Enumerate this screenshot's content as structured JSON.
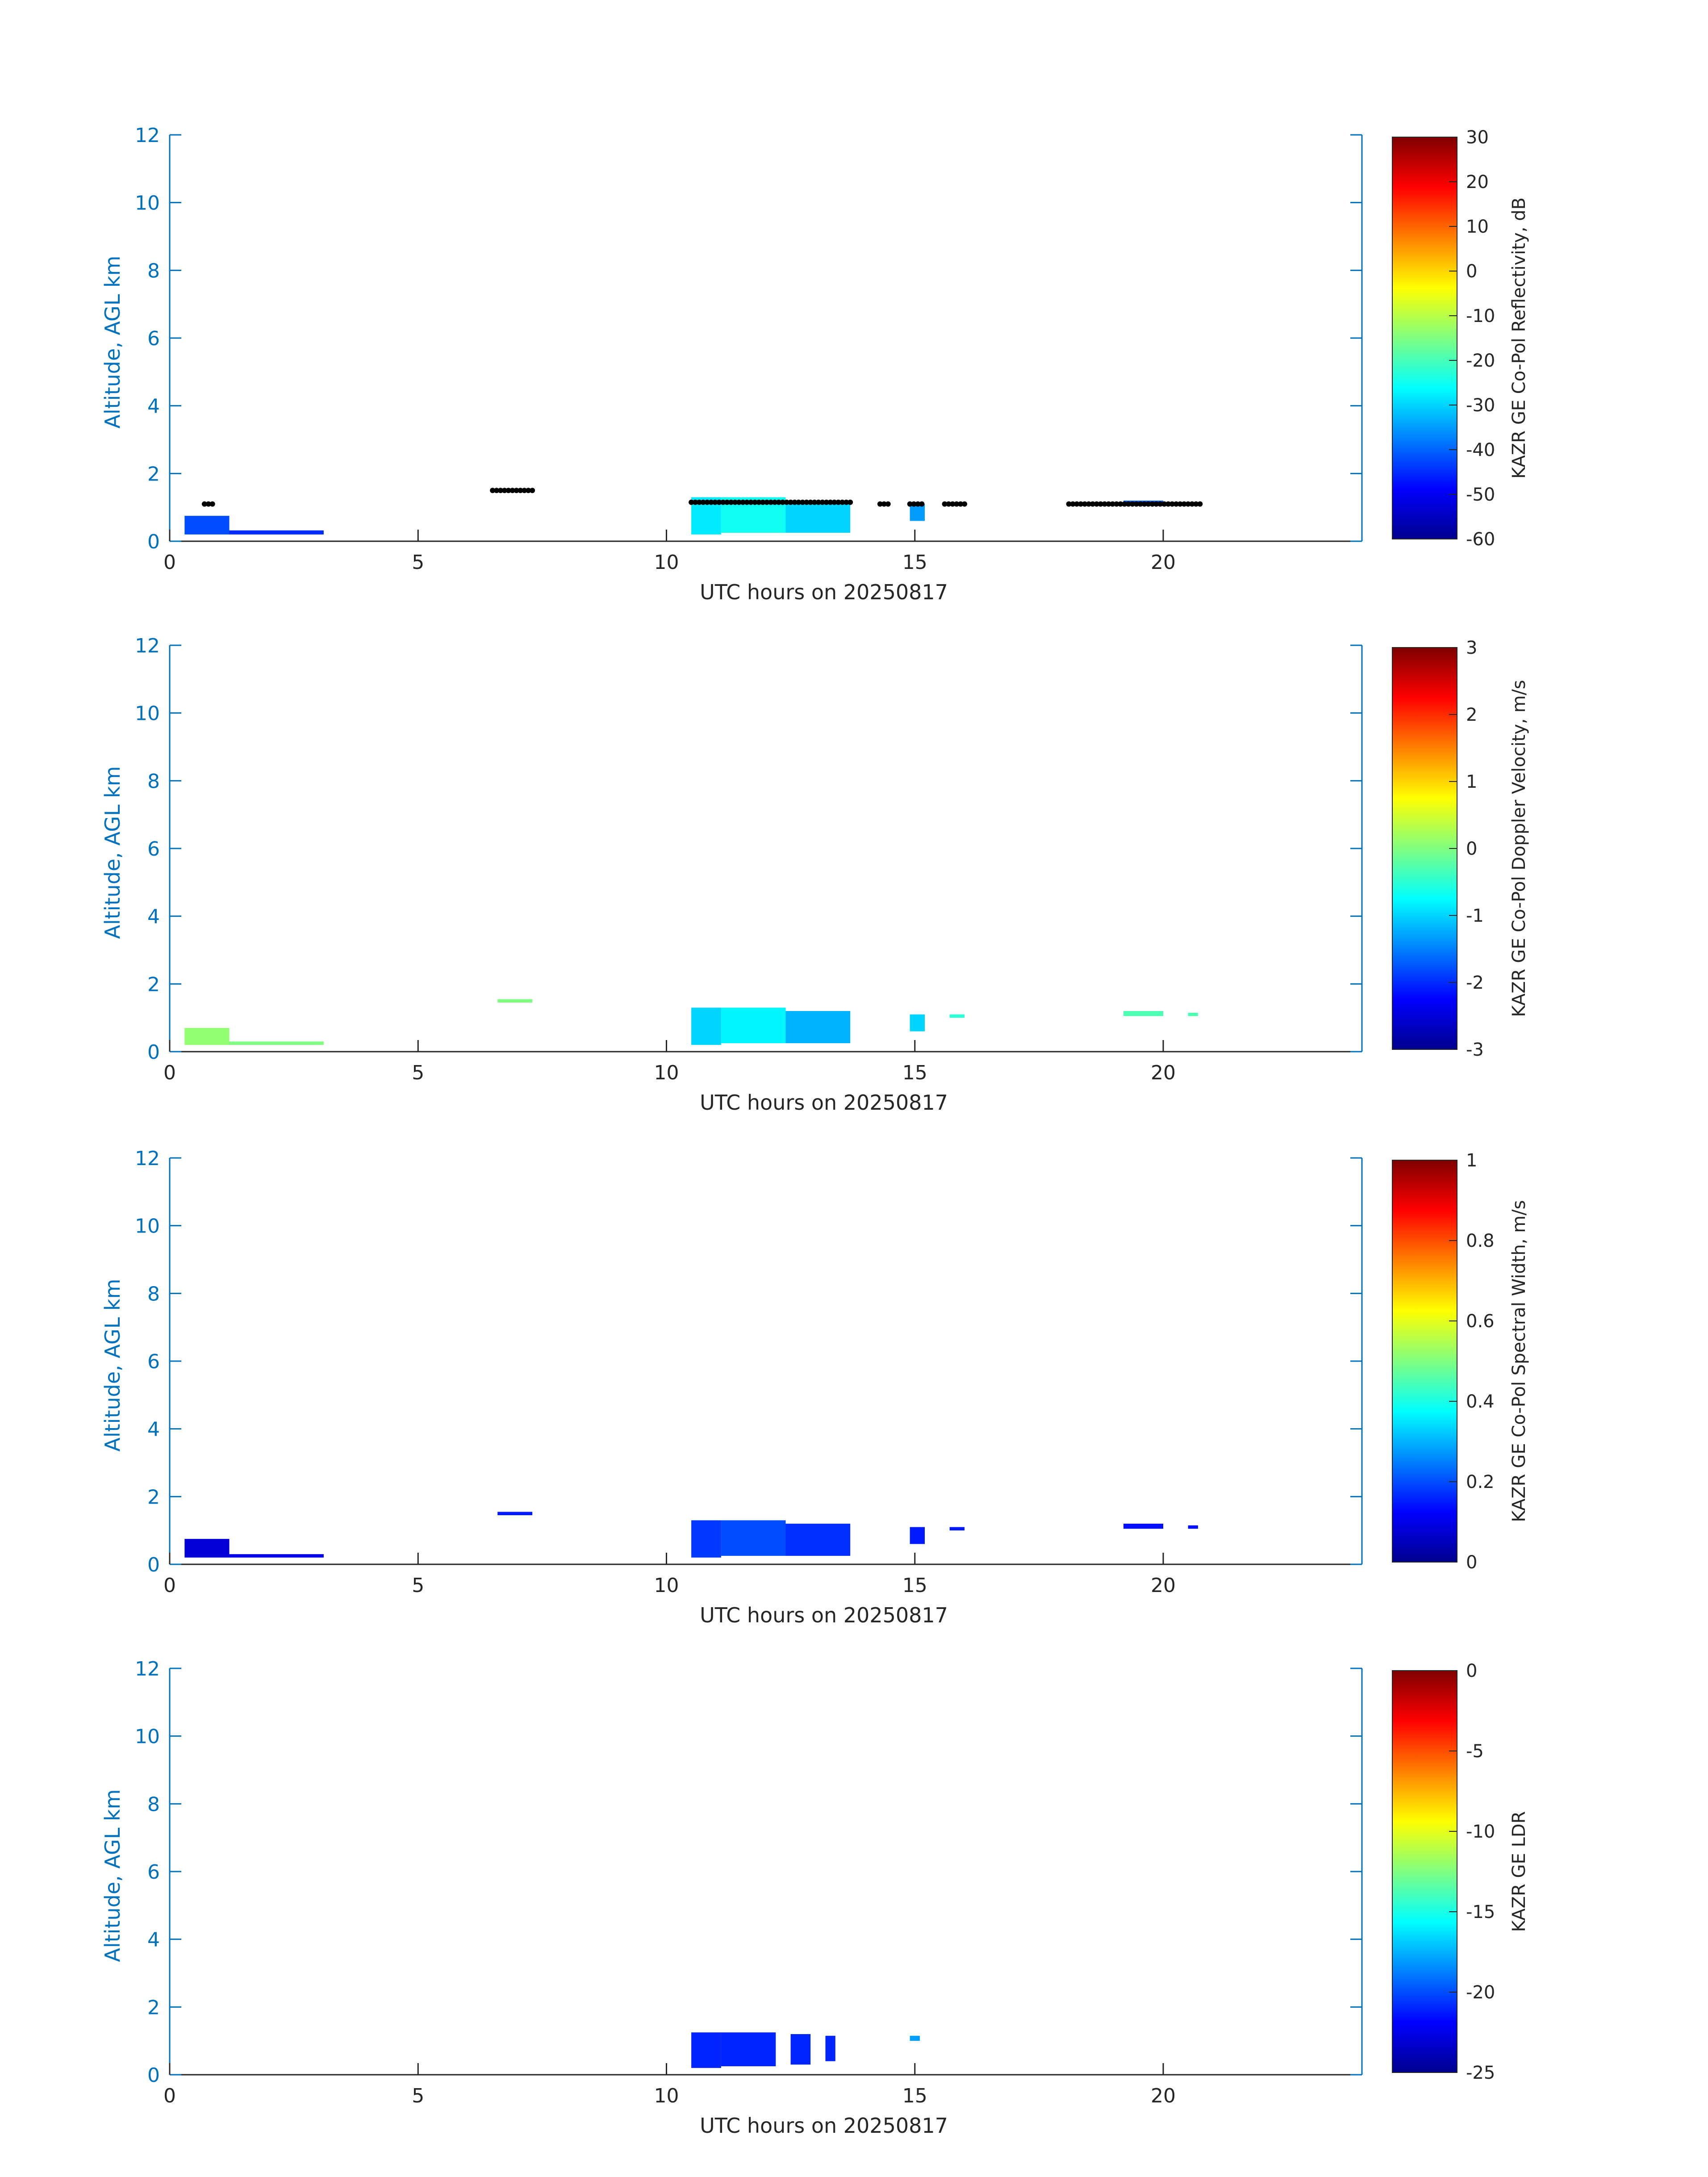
{
  "colormap": [
    "#00008f",
    "#0000ff",
    "#0080ff",
    "#00ffff",
    "#80ff80",
    "#ffff00",
    "#ff8000",
    "#ff0000",
    "#800000"
  ],
  "axis_color": "#0072bd",
  "chart_data": [
    {
      "type": "heatmap",
      "title": "",
      "xlabel": "UTC hours on 20250817",
      "ylabel": "Altitude, AGL km",
      "xlim": [
        0,
        24
      ],
      "ylim": [
        0,
        12
      ],
      "xticks": [
        0,
        5,
        10,
        15,
        20
      ],
      "yticks": [
        0,
        2,
        4,
        6,
        8,
        10,
        12
      ],
      "colorbar_label": "KAZR GE Co-Pol Reflectivity, dB",
      "colorbar_range": [
        -60,
        30
      ],
      "colorbar_ticks": [
        -60,
        -50,
        -40,
        -30,
        -20,
        -10,
        0,
        10,
        20,
        30
      ],
      "cloud_cells": [
        {
          "x0": 0.3,
          "x1": 1.2,
          "y0": 0.2,
          "y1": 0.75,
          "value": -42
        },
        {
          "x0": 1.2,
          "x1": 3.1,
          "y0": 0.2,
          "y1": 0.32,
          "value": -45
        },
        {
          "x0": 10.5,
          "x1": 11.1,
          "y0": 0.2,
          "y1": 1.3,
          "value": -28
        },
        {
          "x0": 11.1,
          "x1": 12.4,
          "y0": 0.25,
          "y1": 1.3,
          "value": -25
        },
        {
          "x0": 12.4,
          "x1": 13.7,
          "y0": 0.25,
          "y1": 1.2,
          "value": -30
        },
        {
          "x0": 14.9,
          "x1": 15.2,
          "y0": 0.6,
          "y1": 1.1,
          "value": -35
        },
        {
          "x0": 19.2,
          "x1": 20.0,
          "y0": 1.05,
          "y1": 1.2,
          "value": -40
        }
      ],
      "cloud_base_points": [
        {
          "x0": 0.7,
          "x1": 0.9,
          "y": 1.1
        },
        {
          "x0": 6.5,
          "x1": 7.3,
          "y": 1.5
        },
        {
          "x0": 10.5,
          "x1": 13.7,
          "y": 1.15
        },
        {
          "x0": 14.3,
          "x1": 14.5,
          "y": 1.1
        },
        {
          "x0": 14.9,
          "x1": 15.2,
          "y": 1.1
        },
        {
          "x0": 15.6,
          "x1": 16.0,
          "y": 1.1
        },
        {
          "x0": 18.1,
          "x1": 20.8,
          "y": 1.1
        }
      ]
    },
    {
      "type": "heatmap",
      "title": "",
      "xlabel": "UTC hours on 20250817",
      "ylabel": "Altitude, AGL km",
      "xlim": [
        0,
        24
      ],
      "ylim": [
        0,
        12
      ],
      "xticks": [
        0,
        5,
        10,
        15,
        20
      ],
      "yticks": [
        0,
        2,
        4,
        6,
        8,
        10,
        12
      ],
      "colorbar_label": "KAZR GE Co-Pol Doppler Velocity, m/s",
      "colorbar_range": [
        -3,
        3
      ],
      "colorbar_ticks": [
        -3,
        -2,
        -1,
        0,
        1,
        2,
        3
      ],
      "cloud_cells": [
        {
          "x0": 0.3,
          "x1": 1.2,
          "y0": 0.2,
          "y1": 0.7,
          "value": 0.1
        },
        {
          "x0": 1.2,
          "x1": 3.1,
          "y0": 0.2,
          "y1": 0.3,
          "value": 0.0
        },
        {
          "x0": 6.6,
          "x1": 7.3,
          "y0": 1.45,
          "y1": 1.55,
          "value": 0.0
        },
        {
          "x0": 10.5,
          "x1": 11.1,
          "y0": 0.2,
          "y1": 1.3,
          "value": -1.0
        },
        {
          "x0": 11.1,
          "x1": 12.4,
          "y0": 0.25,
          "y1": 1.3,
          "value": -0.8
        },
        {
          "x0": 12.4,
          "x1": 13.7,
          "y0": 0.25,
          "y1": 1.2,
          "value": -1.2
        },
        {
          "x0": 14.9,
          "x1": 15.2,
          "y0": 0.6,
          "y1": 1.1,
          "value": -1.0
        },
        {
          "x0": 15.7,
          "x1": 16.0,
          "y0": 1.0,
          "y1": 1.1,
          "value": -0.5
        },
        {
          "x0": 19.2,
          "x1": 20.0,
          "y0": 1.05,
          "y1": 1.2,
          "value": -0.3
        },
        {
          "x0": 20.5,
          "x1": 20.7,
          "y0": 1.05,
          "y1": 1.15,
          "value": -0.3
        }
      ]
    },
    {
      "type": "heatmap",
      "title": "",
      "xlabel": "UTC hours on 20250817",
      "ylabel": "Altitude, AGL km",
      "xlim": [
        0,
        24
      ],
      "ylim": [
        0,
        12
      ],
      "xticks": [
        0,
        5,
        10,
        15,
        20
      ],
      "yticks": [
        0,
        2,
        4,
        6,
        8,
        10,
        12
      ],
      "colorbar_label": "KAZR GE Co-Pol Spectral Width, m/s",
      "colorbar_range": [
        0,
        1
      ],
      "colorbar_ticks": [
        0,
        0.2,
        0.4,
        0.6,
        0.8,
        1
      ],
      "cloud_cells": [
        {
          "x0": 0.3,
          "x1": 1.2,
          "y0": 0.2,
          "y1": 0.75,
          "value": 0.08
        },
        {
          "x0": 1.2,
          "x1": 3.1,
          "y0": 0.2,
          "y1": 0.3,
          "value": 0.1
        },
        {
          "x0": 6.6,
          "x1": 7.3,
          "y0": 1.45,
          "y1": 1.55,
          "value": 0.15
        },
        {
          "x0": 10.5,
          "x1": 11.1,
          "y0": 0.2,
          "y1": 1.3,
          "value": 0.18
        },
        {
          "x0": 11.1,
          "x1": 12.4,
          "y0": 0.25,
          "y1": 1.3,
          "value": 0.2
        },
        {
          "x0": 12.4,
          "x1": 13.7,
          "y0": 0.25,
          "y1": 1.2,
          "value": 0.17
        },
        {
          "x0": 14.9,
          "x1": 15.2,
          "y0": 0.6,
          "y1": 1.1,
          "value": 0.15
        },
        {
          "x0": 15.7,
          "x1": 16.0,
          "y0": 1.0,
          "y1": 1.1,
          "value": 0.15
        },
        {
          "x0": 19.2,
          "x1": 20.0,
          "y0": 1.05,
          "y1": 1.2,
          "value": 0.14
        },
        {
          "x0": 20.5,
          "x1": 20.7,
          "y0": 1.05,
          "y1": 1.15,
          "value": 0.14
        }
      ]
    },
    {
      "type": "heatmap",
      "title": "",
      "xlabel": "UTC hours on 20250817",
      "ylabel": "Altitude, AGL km",
      "xlim": [
        0,
        24
      ],
      "ylim": [
        0,
        12
      ],
      "xticks": [
        0,
        5,
        10,
        15,
        20
      ],
      "yticks": [
        0,
        2,
        4,
        6,
        8,
        10,
        12
      ],
      "colorbar_label": "KAZR GE LDR",
      "colorbar_range": [
        -25,
        0
      ],
      "colorbar_ticks": [
        -25,
        -20,
        -15,
        -10,
        -5,
        0
      ],
      "cloud_cells": [
        {
          "x0": 10.5,
          "x1": 11.1,
          "y0": 0.2,
          "y1": 1.25,
          "value": -21
        },
        {
          "x0": 11.1,
          "x1": 12.2,
          "y0": 0.25,
          "y1": 1.25,
          "value": -21
        },
        {
          "x0": 12.5,
          "x1": 12.9,
          "y0": 0.3,
          "y1": 1.2,
          "value": -21
        },
        {
          "x0": 13.2,
          "x1": 13.4,
          "y0": 0.4,
          "y1": 1.15,
          "value": -21
        },
        {
          "x0": 14.9,
          "x1": 15.1,
          "y0": 1.0,
          "y1": 1.15,
          "value": -18
        }
      ]
    }
  ]
}
